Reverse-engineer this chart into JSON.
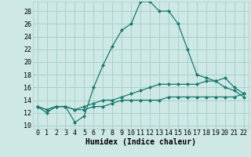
{
  "xlabel": "Humidex (Indice chaleur)",
  "ylabel": "",
  "background_color": "#cde8e5",
  "grid_color": "#aad0cc",
  "line_color": "#1a7a6e",
  "xlim": [
    -0.5,
    22.5
  ],
  "ylim": [
    9.5,
    29.5
  ],
  "xticks": [
    0,
    1,
    2,
    3,
    4,
    5,
    6,
    7,
    8,
    9,
    10,
    11,
    12,
    13,
    14,
    15,
    16,
    17,
    18,
    19,
    20,
    21,
    22
  ],
  "yticks": [
    10,
    12,
    14,
    16,
    18,
    20,
    22,
    24,
    26,
    28
  ],
  "curve1_x": [
    0,
    1,
    2,
    3,
    4,
    5,
    6,
    7,
    8,
    9,
    10,
    11,
    12,
    13,
    14,
    15,
    16,
    17,
    18,
    19,
    20,
    21,
    22
  ],
  "curve1_y": [
    13,
    12,
    13,
    13,
    10.5,
    11.5,
    16,
    19.5,
    22.5,
    25,
    26,
    29.5,
    29.5,
    28,
    28,
    26,
    22,
    18,
    17.5,
    17,
    16,
    15.5,
    14.5
  ],
  "curve2_x": [
    0,
    1,
    2,
    3,
    4,
    5,
    6,
    7,
    8,
    9,
    10,
    11,
    12,
    13,
    14,
    15,
    16,
    17,
    18,
    19,
    20,
    21,
    22
  ],
  "curve2_y": [
    13,
    12.5,
    13,
    13,
    12.5,
    13,
    13.5,
    14,
    14,
    14.5,
    15,
    15.5,
    16,
    16.5,
    16.5,
    16.5,
    16.5,
    16.5,
    17,
    17,
    17.5,
    16,
    15
  ],
  "curve3_x": [
    0,
    1,
    2,
    3,
    4,
    5,
    6,
    7,
    8,
    9,
    10,
    11,
    12,
    13,
    14,
    15,
    16,
    17,
    18,
    19,
    20,
    21,
    22
  ],
  "curve3_y": [
    13,
    12.5,
    13,
    13,
    12.5,
    12.5,
    13,
    13,
    13.5,
    14,
    14,
    14,
    14,
    14,
    14.5,
    14.5,
    14.5,
    14.5,
    14.5,
    14.5,
    14.5,
    14.5,
    15
  ],
  "title_fontsize": 7.5,
  "axis_fontsize": 7,
  "tick_fontsize": 6
}
